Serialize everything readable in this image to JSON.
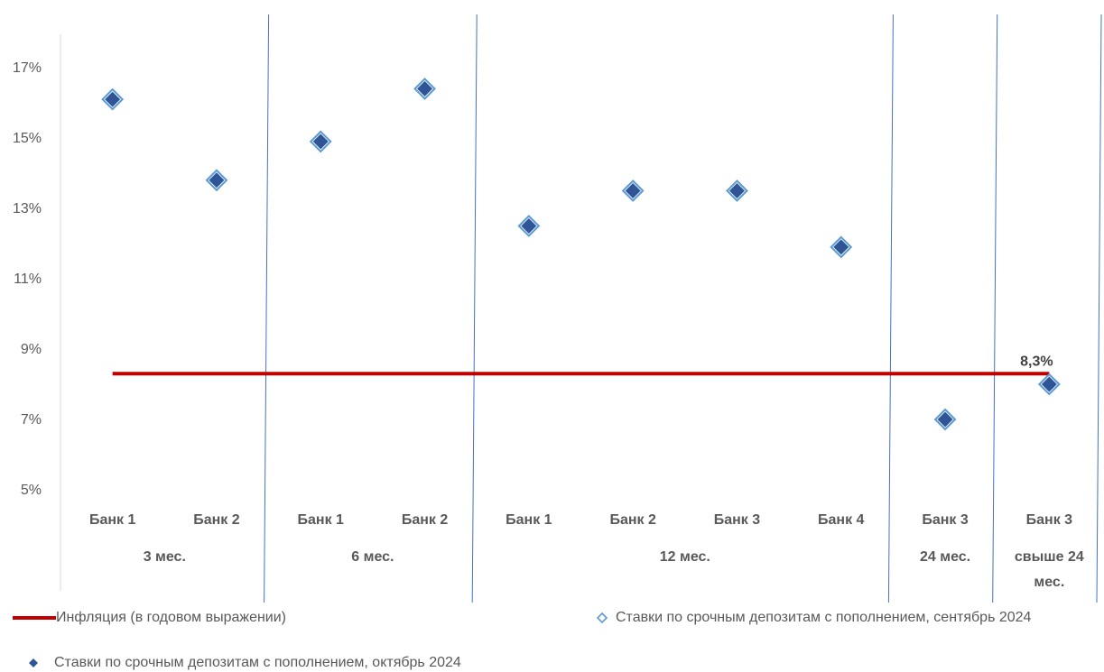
{
  "chart_data": {
    "type": "scatter",
    "title": "",
    "xlabel": "",
    "ylabel": "",
    "ylim": [
      5,
      18
    ],
    "y_ticks": [
      "5%",
      "7%",
      "9%",
      "11%",
      "13%",
      "15%",
      "17%"
    ],
    "grid": false,
    "groups": [
      {
        "label": "3 мес.",
        "categories": [
          "Банк 1",
          "Банк 2"
        ]
      },
      {
        "label": "6 мес.",
        "categories": [
          "Банк 1",
          "Банк 2"
        ]
      },
      {
        "label": "12 мес.",
        "categories": [
          "Банк 1",
          "Банк 2",
          "Банк 3",
          "Банк 4"
        ]
      },
      {
        "label": "24 мес.",
        "categories": [
          "Банк 3"
        ]
      },
      {
        "label": "свыше 24 мес.",
        "label_lines": [
          "свыше 24",
          "мес."
        ],
        "categories": [
          "Банк 3"
        ]
      }
    ],
    "series": [
      {
        "name": "Инфляция (в годовом выражении)",
        "kind": "line",
        "color": "#C00000",
        "values": [
          8.3,
          8.3,
          8.3,
          8.3,
          8.3,
          8.3,
          8.3,
          8.3,
          8.3,
          8.3
        ],
        "data_label": "8,3%"
      },
      {
        "name": "Ставки по срочным депозитам с пополнением, сентябрь 2024",
        "kind": "marker-hollow",
        "color": "#5B9BD5",
        "values": [
          16.1,
          13.8,
          14.9,
          16.4,
          12.5,
          13.5,
          13.5,
          11.9,
          7.0,
          8.0
        ]
      },
      {
        "name": "Ставки по срочным депозитам с пополнением, октябрь 2024",
        "kind": "marker-filled",
        "color": "#2F5597",
        "values": [
          16.1,
          13.8,
          14.9,
          16.4,
          12.5,
          13.5,
          13.5,
          11.9,
          7.0,
          8.0
        ]
      }
    ],
    "legend_position": "bottom"
  }
}
